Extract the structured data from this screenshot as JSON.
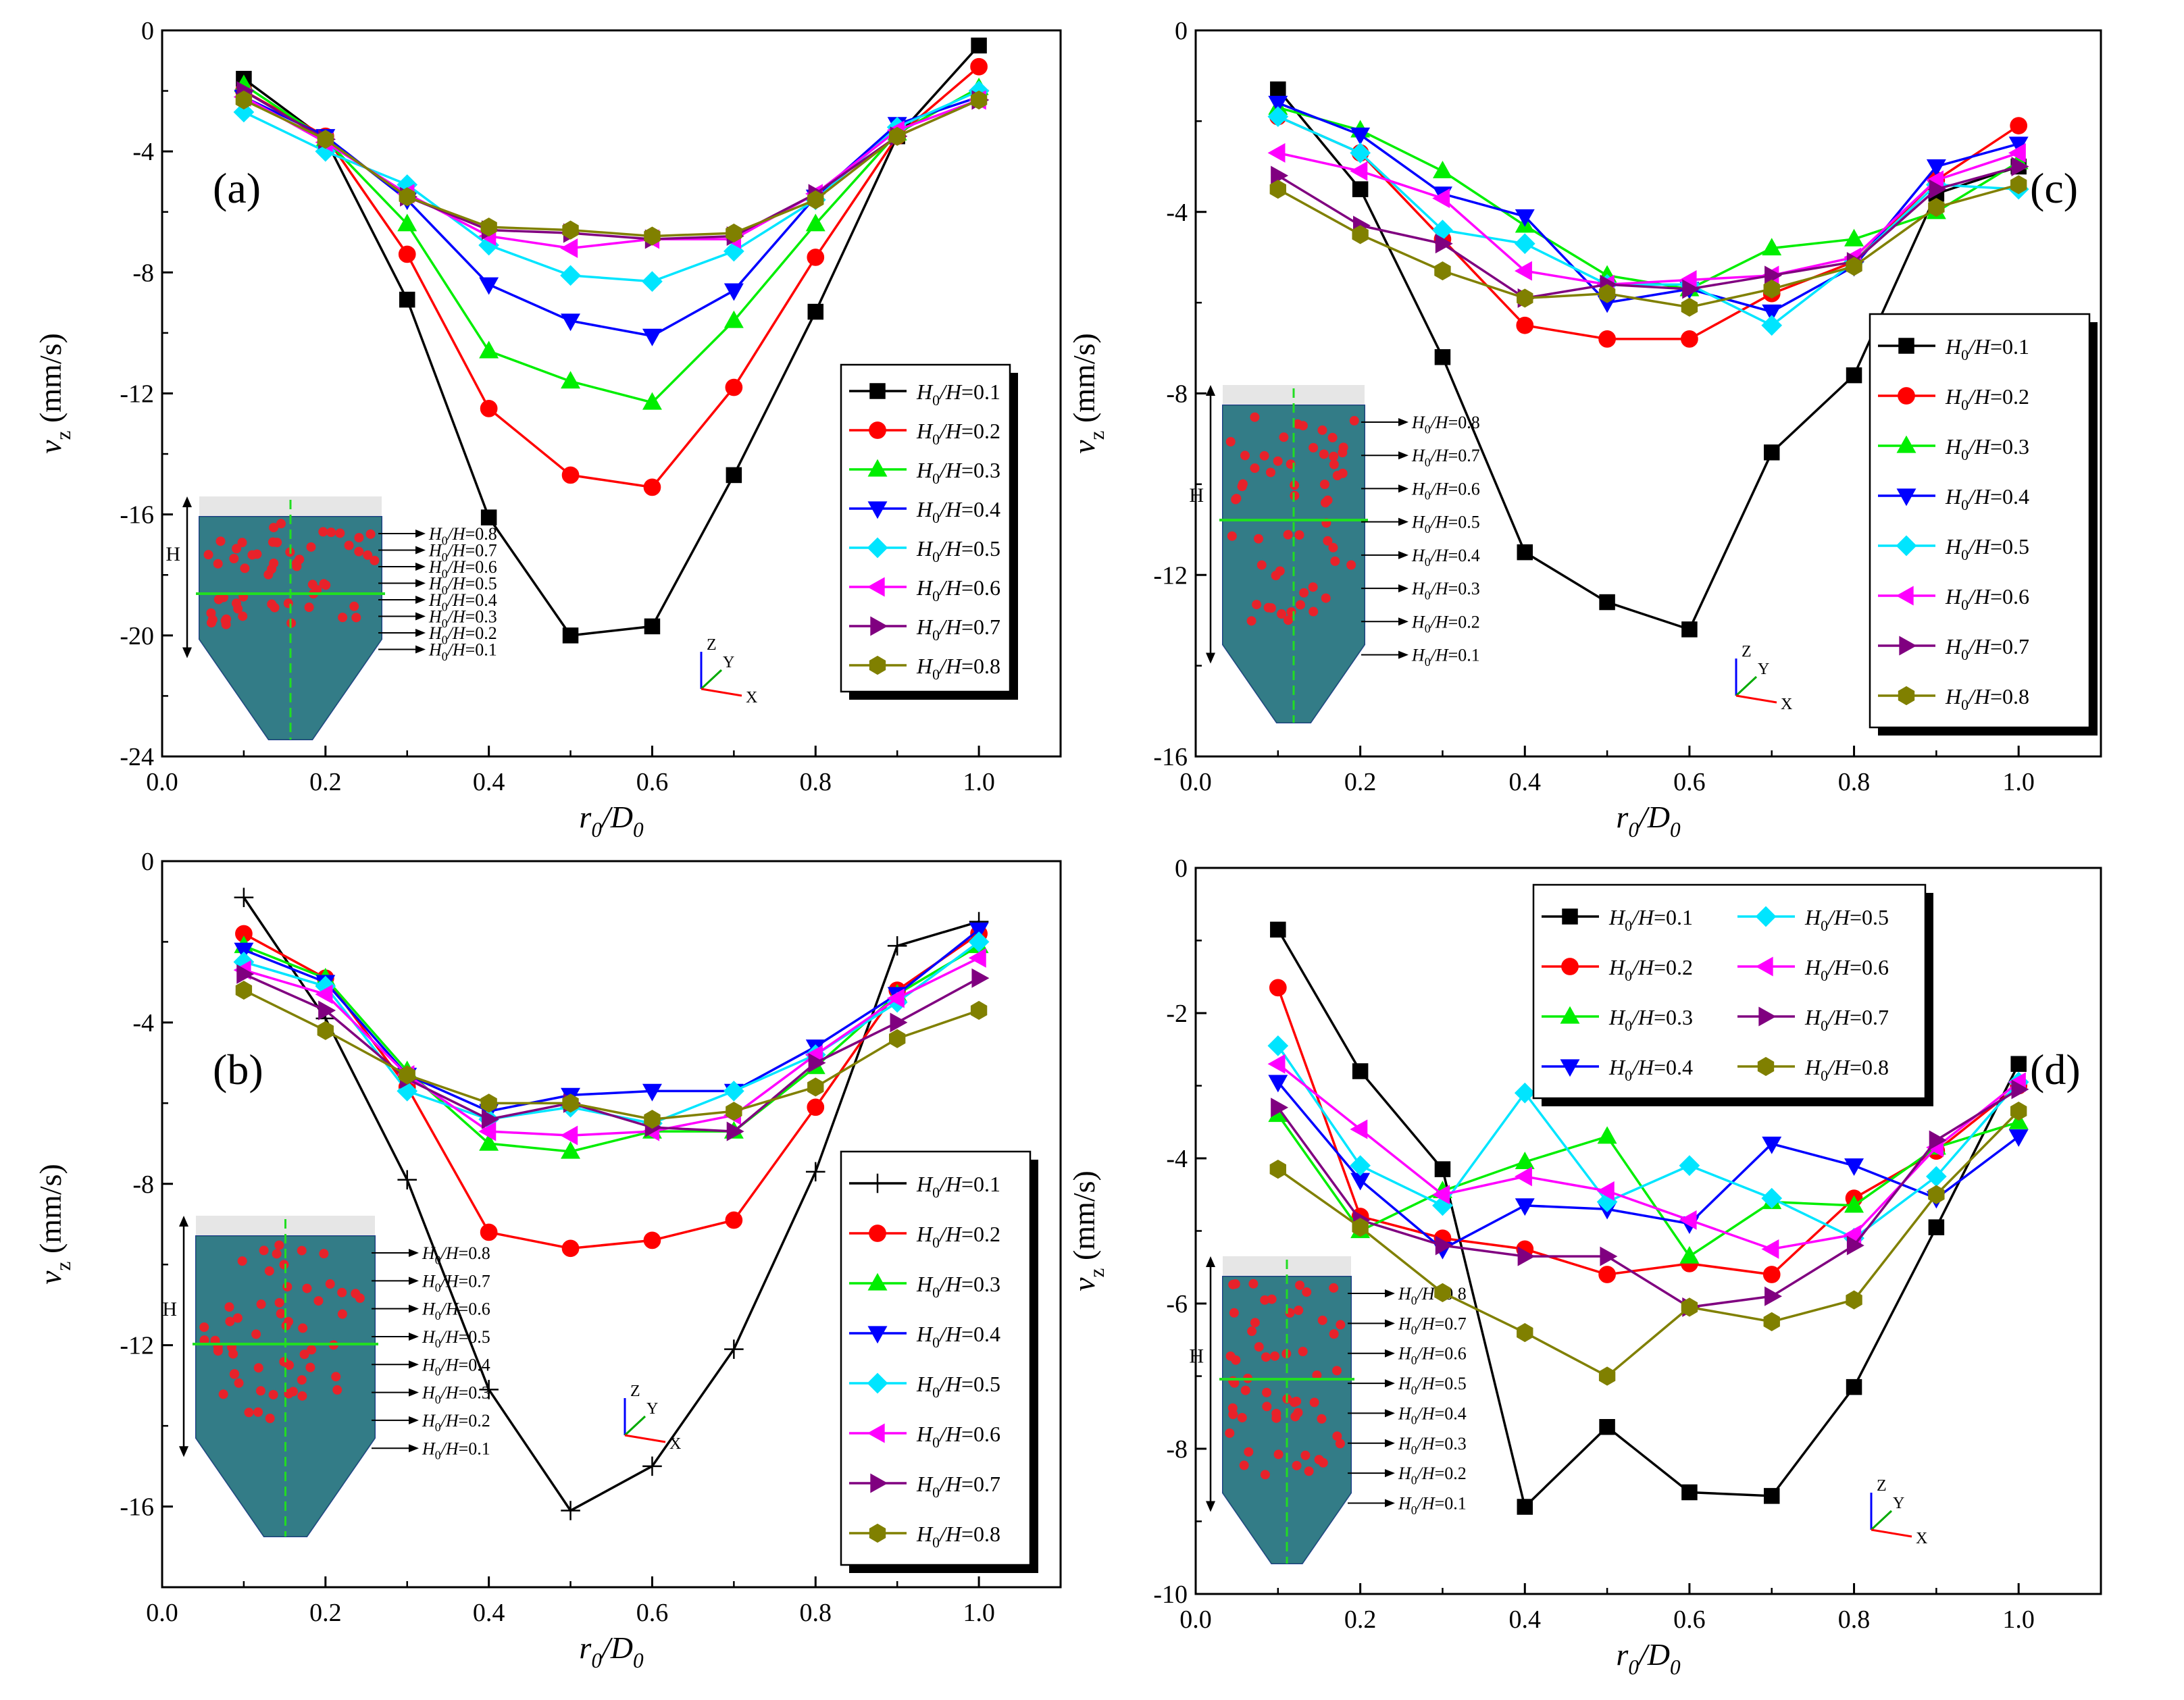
{
  "series_labels": [
    "H0/H=0.1",
    "H0/H=0.2",
    "H0/H=0.3",
    "H0/H=0.4",
    "H0/H=0.5",
    "H0/H=0.6",
    "H0/H=0.7",
    "H0/H=0.8"
  ],
  "series_style": [
    {
      "color": "#000000",
      "marker": "square"
    },
    {
      "color": "#ff0000",
      "marker": "circle"
    },
    {
      "color": "#00ee00",
      "marker": "triangle-up"
    },
    {
      "color": "#0000ff",
      "marker": "triangle-down"
    },
    {
      "color": "#00e5ff",
      "marker": "diamond"
    },
    {
      "color": "#ff00ff",
      "marker": "triangle-left"
    },
    {
      "color": "#800080",
      "marker": "triangle-right"
    },
    {
      "color": "#808000",
      "marker": "hexagon"
    }
  ],
  "chart_data": [
    {
      "id": "a",
      "type": "line",
      "panel_label": "(a)",
      "xlabel_main": "r",
      "xlabel_sub1": "0",
      "xlabel_mid": "/D",
      "xlabel_sub2": "0",
      "ylabel_main": "v",
      "ylabel_sub": "z",
      "ylabel_unit": " (mm/s)",
      "xlim": [
        0.0,
        1.1
      ],
      "ylim": [
        -24,
        0
      ],
      "xticks": [
        0.0,
        0.2,
        0.4,
        0.6,
        0.8,
        1.0
      ],
      "xtick_labels": [
        "0.0",
        "0.2",
        "0.4",
        "0.6",
        "0.8",
        "1.0"
      ],
      "yticks": [
        0,
        -4,
        -8,
        -12,
        -16,
        -20,
        -24
      ],
      "ytick_labels": [
        "0",
        "-4",
        "-8",
        "-12",
        "-16",
        "-20",
        "-24"
      ],
      "legend_loc": "right-middle",
      "x": [
        0.1,
        0.2,
        0.3,
        0.4,
        0.5,
        0.6,
        0.7,
        0.8,
        0.9,
        1.0
      ],
      "series": [
        {
          "name": "H0/H=0.1",
          "values": [
            -1.6,
            -3.6,
            -8.9,
            -16.1,
            -20.0,
            -19.7,
            -14.7,
            -9.3,
            -3.5,
            -0.5
          ]
        },
        {
          "name": "H0/H=0.2",
          "values": [
            -2.0,
            -3.5,
            -7.4,
            -12.5,
            -14.7,
            -15.1,
            -11.8,
            -7.5,
            -3.5,
            -1.2
          ]
        },
        {
          "name": "H0/H=0.3",
          "values": [
            -1.8,
            -3.6,
            -6.4,
            -10.6,
            -11.6,
            -12.3,
            -9.6,
            -6.4,
            -3.4,
            -1.9
          ]
        },
        {
          "name": "H0/H=0.4",
          "values": [
            -2.2,
            -3.5,
            -5.6,
            -8.4,
            -9.6,
            -10.1,
            -8.6,
            -5.5,
            -3.1,
            -2.2
          ]
        },
        {
          "name": "H0/H=0.5",
          "values": [
            -2.7,
            -4.0,
            -5.1,
            -7.1,
            -8.1,
            -8.3,
            -7.3,
            -5.6,
            -3.2,
            -2.0
          ]
        },
        {
          "name": "H0/H=0.6",
          "values": [
            -2.2,
            -3.7,
            -5.4,
            -6.8,
            -7.2,
            -6.9,
            -6.9,
            -5.4,
            -3.3,
            -2.3
          ]
        },
        {
          "name": "H0/H=0.7",
          "values": [
            -2.0,
            -3.6,
            -5.5,
            -6.6,
            -6.7,
            -6.9,
            -6.8,
            -5.4,
            -3.5,
            -2.3
          ]
        },
        {
          "name": "H0/H=0.8",
          "values": [
            -2.3,
            -3.6,
            -5.5,
            -6.5,
            -6.6,
            -6.8,
            -6.7,
            -5.6,
            -3.5,
            -2.3
          ]
        }
      ],
      "inset": {
        "height_label": "H",
        "levels": [
          "H0/H=0.8",
          "H0/H=0.7",
          "H0/H=0.6",
          "H0/H=0.5",
          "H0/H=0.4",
          "H0/H=0.3",
          "H0/H=0.2",
          "H0/H=0.1"
        ]
      },
      "axes_labels": {
        "z": "Z",
        "y": "Y",
        "x": "X"
      }
    },
    {
      "id": "b",
      "type": "line",
      "panel_label": "(b)",
      "xlabel_main": "r",
      "xlabel_sub1": "0",
      "xlabel_mid": "/D",
      "xlabel_sub2": "0",
      "ylabel_main": "v",
      "ylabel_sub": "z",
      "ylabel_unit": " (mm/s)",
      "xlim": [
        0.0,
        1.1
      ],
      "ylim": [
        -18,
        0
      ],
      "xticks": [
        0.0,
        0.2,
        0.4,
        0.6,
        0.8,
        1.0
      ],
      "xtick_labels": [
        "0.0",
        "0.2",
        "0.4",
        "0.6",
        "0.8",
        "1.0"
      ],
      "yticks": [
        0,
        -4,
        -8,
        -12,
        -16
      ],
      "ytick_labels": [
        "0",
        "-4",
        "-8",
        "-12",
        "-16"
      ],
      "legend_loc": "right-bottom",
      "first_marker": "plus",
      "x": [
        0.1,
        0.2,
        0.3,
        0.4,
        0.5,
        0.6,
        0.7,
        0.8,
        0.9,
        1.0
      ],
      "series": [
        {
          "name": "H0/H=0.1",
          "values": [
            -0.9,
            -3.9,
            -7.9,
            -13.1,
            -16.1,
            -15.0,
            -12.1,
            -7.7,
            -2.1,
            -1.5
          ]
        },
        {
          "name": "H0/H=0.2",
          "values": [
            -1.8,
            -2.9,
            -5.6,
            -9.2,
            -9.6,
            -9.4,
            -8.9,
            -6.1,
            -3.2,
            -1.8
          ]
        },
        {
          "name": "H0/H=0.3",
          "values": [
            -2.1,
            -2.9,
            -5.2,
            -7.0,
            -7.2,
            -6.7,
            -6.7,
            -5.1,
            -3.3,
            -2.1
          ]
        },
        {
          "name": "H0/H=0.4",
          "values": [
            -2.2,
            -3.0,
            -5.3,
            -6.2,
            -5.8,
            -5.7,
            -5.7,
            -4.6,
            -3.3,
            -1.7
          ]
        },
        {
          "name": "H0/H=0.5",
          "values": [
            -2.5,
            -3.1,
            -5.7,
            -6.4,
            -6.1,
            -6.5,
            -5.7,
            -4.8,
            -3.5,
            -2.0
          ]
        },
        {
          "name": "H0/H=0.6",
          "values": [
            -2.7,
            -3.3,
            -5.3,
            -6.7,
            -6.8,
            -6.7,
            -6.3,
            -4.8,
            -3.4,
            -2.4
          ]
        },
        {
          "name": "H0/H=0.7",
          "values": [
            -2.8,
            -3.7,
            -5.4,
            -6.4,
            -6.0,
            -6.6,
            -6.7,
            -5.0,
            -4.0,
            -2.9
          ]
        },
        {
          "name": "H0/H=0.8",
          "values": [
            -3.2,
            -4.2,
            -5.3,
            -6.0,
            -6.0,
            -6.4,
            -6.2,
            -5.6,
            -4.4,
            -3.7
          ]
        }
      ],
      "inset": {
        "height_label": "H",
        "levels": [
          "H0/H=0.8",
          "H0/H=0.7",
          "H0/H=0.6",
          "H0/H=0.5",
          "H0/H=0.4",
          "H0/H=0.3",
          "H0/H=0.2",
          "H0/H=0.1"
        ]
      },
      "axes_labels": {
        "z": "Z",
        "y": "Y",
        "x": "X"
      }
    },
    {
      "id": "c",
      "type": "line",
      "panel_label": "(c)",
      "xlabel_main": "r",
      "xlabel_sub1": "0",
      "xlabel_mid": "/D",
      "xlabel_sub2": "0",
      "ylabel_main": "v",
      "ylabel_sub": "z",
      "ylabel_unit": " (mm/s)",
      "xlim": [
        0.0,
        1.1
      ],
      "ylim": [
        -16,
        0
      ],
      "xticks": [
        0.0,
        0.2,
        0.4,
        0.6,
        0.8,
        1.0
      ],
      "xtick_labels": [
        "0.0",
        "0.2",
        "0.4",
        "0.6",
        "0.8",
        "1.0"
      ],
      "yticks": [
        0,
        -4,
        -8,
        -12,
        -16
      ],
      "ytick_labels": [
        "0",
        "-4",
        "-8",
        "-12",
        "-16"
      ],
      "legend_loc": "right-middle",
      "x": [
        0.1,
        0.2,
        0.3,
        0.4,
        0.5,
        0.6,
        0.7,
        0.8,
        0.9,
        1.0
      ],
      "series": [
        {
          "name": "H0/H=0.1",
          "values": [
            -1.3,
            -3.5,
            -7.2,
            -11.5,
            -12.6,
            -13.2,
            -9.3,
            -7.6,
            -3.6,
            -3.0
          ]
        },
        {
          "name": "H0/H=0.2",
          "values": [
            -1.9,
            -2.7,
            -4.6,
            -6.5,
            -6.8,
            -6.8,
            -5.8,
            -5.1,
            -3.3,
            -2.1
          ]
        },
        {
          "name": "H0/H=0.3",
          "values": [
            -1.7,
            -2.2,
            -3.1,
            -4.3,
            -5.4,
            -5.7,
            -4.8,
            -4.6,
            -4.0,
            -2.9
          ]
        },
        {
          "name": "H0/H=0.4",
          "values": [
            -1.6,
            -2.3,
            -3.6,
            -4.1,
            -6.0,
            -5.7,
            -6.2,
            -5.2,
            -3.0,
            -2.5
          ]
        },
        {
          "name": "H0/H=0.5",
          "values": [
            -1.9,
            -2.7,
            -4.4,
            -4.7,
            -5.6,
            -5.6,
            -6.5,
            -5.1,
            -3.4,
            -3.5
          ]
        },
        {
          "name": "H0/H=0.6",
          "values": [
            -2.7,
            -3.1,
            -3.7,
            -5.3,
            -5.6,
            -5.5,
            -5.4,
            -5.0,
            -3.3,
            -2.7
          ]
        },
        {
          "name": "H0/H=0.7",
          "values": [
            -3.2,
            -4.3,
            -4.7,
            -5.9,
            -5.6,
            -5.7,
            -5.4,
            -5.1,
            -3.5,
            -3.0
          ]
        },
        {
          "name": "H0/H=0.8",
          "values": [
            -3.5,
            -4.5,
            -5.3,
            -5.9,
            -5.8,
            -6.1,
            -5.7,
            -5.2,
            -3.9,
            -3.4
          ]
        }
      ],
      "inset": {
        "height_label": "H",
        "levels": [
          "H0/H=0.8",
          "H0/H=0.7",
          "H0/H=0.6",
          "H0/H=0.5",
          "H0/H=0.4",
          "H0/H=0.3",
          "H0/H=0.2",
          "H0/H=0.1"
        ]
      },
      "axes_labels": {
        "z": "Z",
        "y": "Y",
        "x": "X"
      }
    },
    {
      "id": "d",
      "type": "line",
      "panel_label": "(d)",
      "xlabel_main": "r",
      "xlabel_sub1": "0",
      "xlabel_mid": "/D",
      "xlabel_sub2": "0",
      "ylabel_main": "v",
      "ylabel_sub": "z",
      "ylabel_unit": " (mm/s)",
      "xlim": [
        0.0,
        1.1
      ],
      "ylim": [
        -10,
        0
      ],
      "xticks": [
        0.0,
        0.2,
        0.4,
        0.6,
        0.8,
        1.0
      ],
      "xtick_labels": [
        "0.0",
        "0.2",
        "0.4",
        "0.6",
        "0.8",
        "1.0"
      ],
      "yticks": [
        0,
        -2,
        -4,
        -6,
        -8,
        -10
      ],
      "ytick_labels": [
        "0",
        "-2",
        "-4",
        "-6",
        "-8",
        "-10"
      ],
      "legend_loc": "top-center",
      "x": [
        0.1,
        0.2,
        0.3,
        0.4,
        0.5,
        0.6,
        0.7,
        0.8,
        0.9,
        1.0
      ],
      "series": [
        {
          "name": "H0/H=0.1",
          "values": [
            -0.85,
            -2.8,
            -4.15,
            -8.8,
            -7.7,
            -8.6,
            -8.65,
            -7.15,
            -4.95,
            -2.7
          ]
        },
        {
          "name": "H0/H=0.2",
          "values": [
            -1.65,
            -4.8,
            -5.1,
            -5.25,
            -5.6,
            -5.45,
            -5.6,
            -4.55,
            -3.9,
            -3.0
          ]
        },
        {
          "name": "H0/H=0.3",
          "values": [
            -3.4,
            -5.0,
            -4.45,
            -4.05,
            -3.7,
            -5.35,
            -4.6,
            -4.65,
            -3.85,
            -3.5
          ]
        },
        {
          "name": "H0/H=0.4",
          "values": [
            -2.95,
            -4.3,
            -5.25,
            -4.65,
            -4.7,
            -4.9,
            -3.8,
            -4.1,
            -4.55,
            -3.7
          ]
        },
        {
          "name": "H0/H=0.5",
          "values": [
            -2.45,
            -4.1,
            -4.65,
            -3.1,
            -4.6,
            -4.1,
            -4.55,
            -5.1,
            -4.25,
            -2.95
          ]
        },
        {
          "name": "H0/H=0.6",
          "values": [
            -2.7,
            -3.6,
            -4.5,
            -4.25,
            -4.45,
            -4.85,
            -5.25,
            -5.05,
            -3.85,
            -2.95
          ]
        },
        {
          "name": "H0/H=0.7",
          "values": [
            -3.3,
            -4.85,
            -5.2,
            -5.35,
            -5.35,
            -6.05,
            -5.9,
            -5.2,
            -3.75,
            -3.05
          ]
        },
        {
          "name": "H0/H=0.8",
          "values": [
            -4.15,
            -4.95,
            -5.85,
            -6.4,
            -7.0,
            -6.05,
            -6.25,
            -5.95,
            -4.5,
            -3.35
          ]
        }
      ],
      "inset": {
        "height_label": "H",
        "levels": [
          "H0/H=0.8",
          "H0/H=0.7",
          "H0/H=0.6",
          "H0/H=0.5",
          "H0/H=0.4",
          "H0/H=0.3",
          "H0/H=0.2",
          "H0/H=0.1"
        ]
      },
      "axes_labels": {
        "z": "Z",
        "y": "Y",
        "x": "X"
      }
    }
  ]
}
